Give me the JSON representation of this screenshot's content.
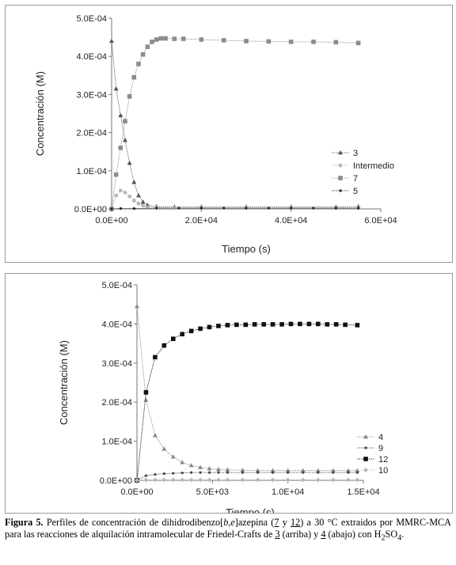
{
  "chart_data": [
    {
      "type": "line",
      "title": "",
      "xlabel": "Tiempo (s)",
      "ylabel": "Concentración (M)",
      "xlim": [
        0,
        60000
      ],
      "ylim": [
        0,
        0.0005
      ],
      "xticks": [
        "0.0E+00",
        "2.0E+04",
        "4.0E+04",
        "6.0E+04"
      ],
      "yticks": [
        "0.0E+00",
        "1.0E-04",
        "2.0E-04",
        "3.0E-04",
        "4.0E-04",
        "5.0E-04"
      ],
      "legend_position": "right",
      "grid": false,
      "series": [
        {
          "name": "3",
          "color": "#555555",
          "marker": "triangle",
          "x": [
            0,
            1000,
            2000,
            3000,
            4000,
            5000,
            6000,
            7000,
            8000,
            10000,
            14000,
            20000,
            30000,
            40000,
            50000,
            55000
          ],
          "y": [
            0.00044,
            0.000315,
            0.000245,
            0.00018,
            0.00012,
            7e-05,
            3.5e-05,
            1.8e-05,
            1e-05,
            6e-06,
            5e-06,
            5e-06,
            5e-06,
            5e-06,
            5e-06,
            6e-06
          ]
        },
        {
          "name": "Intermedio",
          "color": "#b5b5b5",
          "marker": "circle",
          "x": [
            0,
            1000,
            2000,
            3000,
            4000,
            5000,
            6000,
            7000,
            8000,
            10000,
            14000,
            20000,
            30000,
            40000,
            50000,
            55000
          ],
          "y": [
            0.0,
            3.5e-05,
            4.8e-05,
            4.3e-05,
            3.3e-05,
            2.2e-05,
            1.4e-05,
            9e-06,
            5e-06,
            3e-06,
            2e-06,
            2e-06,
            2e-06,
            2e-06,
            2e-06,
            2e-06
          ]
        },
        {
          "name": "7",
          "color": "#8c8c8c",
          "marker": "square",
          "x": [
            0,
            1000,
            2000,
            3000,
            4000,
            5000,
            6000,
            7000,
            8000,
            9000,
            10000,
            11000,
            12000,
            14000,
            16000,
            20000,
            25000,
            30000,
            35000,
            40000,
            45000,
            50000,
            55000
          ],
          "y": [
            0.0,
            9e-05,
            0.00016,
            0.00023,
            0.000295,
            0.000345,
            0.00038,
            0.000405,
            0.000425,
            0.000438,
            0.000444,
            0.000447,
            0.000447,
            0.000446,
            0.000446,
            0.000444,
            0.000442,
            0.00044,
            0.000439,
            0.000438,
            0.000438,
            0.000437,
            0.000435
          ]
        },
        {
          "name": "5",
          "color": "#222222",
          "marker": "dot",
          "x": [
            0,
            2000,
            5000,
            10000,
            15000,
            20000,
            25000,
            30000,
            35000,
            40000,
            45000,
            50000,
            55000
          ],
          "y": [
            0.0,
            1e-06,
            1e-06,
            2e-06,
            2e-06,
            2e-06,
            2e-06,
            2e-06,
            2e-06,
            2e-06,
            2e-06,
            2e-06,
            2e-06
          ]
        }
      ]
    },
    {
      "type": "line",
      "title": "",
      "xlabel": "Tiempo (s)",
      "ylabel": "Concentración (M)",
      "xlim": [
        0,
        15000
      ],
      "ylim": [
        0,
        0.0005
      ],
      "xticks": [
        "0.0E+00",
        "5.0E+03",
        "1.0E+04",
        "1.5E+04"
      ],
      "yticks": [
        "0.0E+00",
        "1.0E-04",
        "2.0E-04",
        "3.0E-04",
        "4.0E-04",
        "5.0E-04"
      ],
      "legend_position": "right",
      "grid": false,
      "series": [
        {
          "name": "4",
          "color": "#8a8a8a",
          "marker": "triangle",
          "x": [
            0,
            600,
            1200,
            1800,
            2400,
            3000,
            3600,
            4200,
            4800,
            5400,
            6000,
            7000,
            8000,
            9000,
            10000,
            11000,
            12000,
            13000,
            14000,
            14600
          ],
          "y": [
            0.000445,
            0.000205,
            0.000115,
            8e-05,
            6e-05,
            4.6e-05,
            3.8e-05,
            3.3e-05,
            3e-05,
            2.8e-05,
            2.7e-05,
            2.6e-05,
            2.5e-05,
            2.5e-05,
            2.5e-05,
            2.5e-05,
            2.5e-05,
            2.5e-05,
            2.5e-05,
            2.5e-05
          ]
        },
        {
          "name": "9",
          "color": "#444444",
          "marker": "dot",
          "x": [
            0,
            600,
            1200,
            1800,
            2400,
            3000,
            3600,
            4200,
            4800,
            5400,
            6000,
            7000,
            8000,
            9000,
            10000,
            11000,
            12000,
            13000,
            14000,
            14600
          ],
          "y": [
            0.0,
            1.2e-05,
            1.5e-05,
            1.7e-05,
            1.8e-05,
            1.9e-05,
            2e-05,
            2e-05,
            2e-05,
            2e-05,
            2e-05,
            2e-05,
            2e-05,
            2e-05,
            2e-05,
            2e-05,
            2e-05,
            2e-05,
            2e-05,
            2e-05
          ]
        },
        {
          "name": "12",
          "color": "#111111",
          "marker": "square",
          "x": [
            0,
            600,
            1200,
            1800,
            2400,
            3000,
            3600,
            4200,
            4800,
            5400,
            6000,
            6600,
            7200,
            7800,
            8400,
            9000,
            9600,
            10200,
            10800,
            11400,
            12000,
            12600,
            13200,
            13800,
            14600
          ],
          "y": [
            0.0,
            0.000225,
            0.000315,
            0.000345,
            0.000362,
            0.000374,
            0.000382,
            0.000388,
            0.000392,
            0.000395,
            0.000397,
            0.000398,
            0.000398,
            0.000399,
            0.000399,
            0.000399,
            0.000399,
            0.0004,
            0.0004,
            0.0004,
            0.0004,
            0.000399,
            0.000399,
            0.000398,
            0.000397
          ]
        },
        {
          "name": "10",
          "color": "#b8b8b8",
          "marker": "diamond",
          "x": [
            0,
            600,
            1200,
            1800,
            2400,
            3000,
            3600,
            4200,
            4800,
            5400,
            6000,
            7000,
            8000,
            9000,
            10000,
            11000,
            12000,
            13000,
            14000,
            14600
          ],
          "y": [
            0.0,
            1e-06,
            1e-06,
            1e-06,
            1e-06,
            1e-06,
            1e-06,
            1e-06,
            1e-06,
            1e-06,
            1e-06,
            1e-06,
            1e-06,
            1e-06,
            1e-06,
            1e-06,
            1e-06,
            1e-06,
            1e-06,
            1e-06
          ]
        }
      ]
    }
  ],
  "caption": {
    "label": "Figura 5.",
    "text_1": " Perfiles de concentración de dihidrodibenzo[",
    "italic_1": "b",
    "text_2": ",",
    "italic_2": "e",
    "text_3": "]azepina (",
    "ref_1": "7",
    "text_4": " y ",
    "ref_2": "12",
    "text_5": ") a 30 °C extraidos por MMRC-MCA para las reacciones de alquilación intramolecular de Friedel-Crafts de ",
    "ref_3": "3",
    "text_6": " (arriba) y ",
    "ref_4": "4",
    "text_7": " (abajo) con H",
    "sub_1": "2",
    "text_8": "SO",
    "sub_2": "4",
    "text_9": "."
  }
}
